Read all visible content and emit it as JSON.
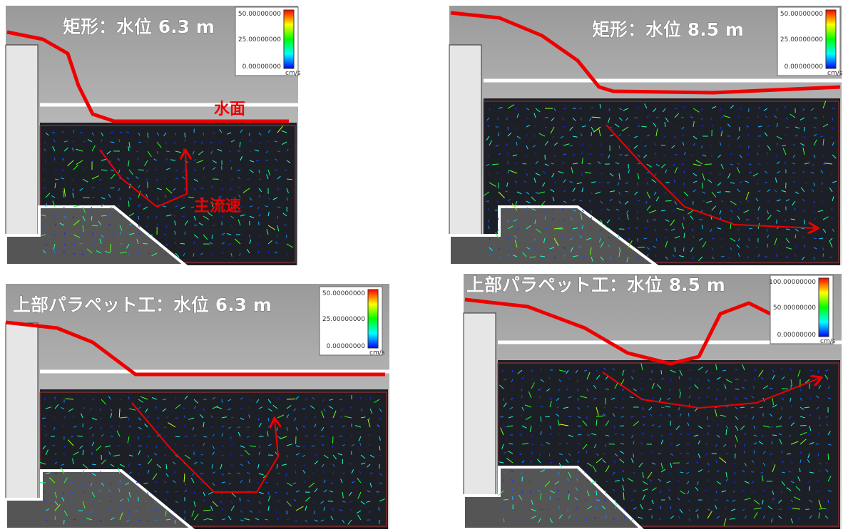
{
  "panels": [
    {
      "title": "矩形：水位 6.3 m",
      "colorbar": {
        "max": "50.00000000",
        "mid": "25.00000000",
        "min": "0.00000000",
        "unit": "cm/s"
      },
      "annotations": [
        "水面",
        "主流速"
      ]
    },
    {
      "title": "矩形：水位 8.5 m",
      "colorbar": {
        "max": "50.00000000",
        "mid": "25.00000000",
        "min": "0.00000000",
        "unit": "cm/s"
      }
    },
    {
      "title": "上部パラペット工：水位 6.3 m",
      "colorbar": {
        "max": "50.00000000",
        "mid": "25.00000000",
        "min": "0.00000000",
        "unit": "cm/s"
      }
    },
    {
      "title": "上部パラペット工：水位 8.5 m",
      "colorbar": {
        "max": "100.00000000",
        "mid": "50.00000000",
        "min": "0.00000000",
        "unit": "cm/s"
      }
    }
  ]
}
